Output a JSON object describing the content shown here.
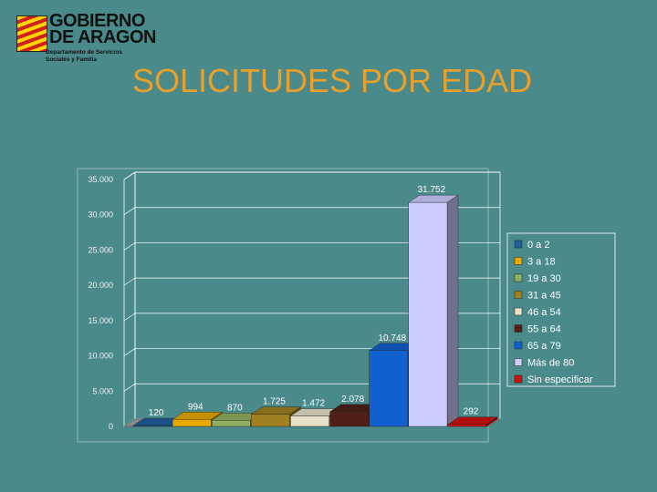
{
  "logo": {
    "name_line1": "GOBIERNO",
    "name_line2": "DE ARAGON",
    "dept_line1": "Departamento de Servicios",
    "dept_line2": "Sociales y Familia"
  },
  "title": "SOLICITUDES POR EDAD",
  "chart_data": {
    "type": "bar",
    "categories": [
      "0 a 2",
      "3 a 18",
      "19 a 30",
      "31 a 45",
      "46 a 54",
      "55 a 64",
      "65 a 79",
      "Más de 80",
      "Sin especificar"
    ],
    "values": [
      120,
      994,
      870,
      1725,
      1472,
      2078,
      10748,
      31752,
      292
    ],
    "value_labels": [
      "120",
      "994",
      "870",
      "1.725",
      "1.472",
      "2.078",
      "10.748",
      "31.752",
      "292"
    ],
    "colors": [
      "#1f5fa0",
      "#e8a800",
      "#8fb060",
      "#a08020",
      "#e8e0c8",
      "#502018",
      "#1060d0",
      "#ccccff",
      "#d01010"
    ],
    "ylim": [
      0,
      35000
    ],
    "yticks": [
      "0",
      "5.000",
      "10.000",
      "15.000",
      "20.000",
      "25.000",
      "30.000",
      "35.000"
    ],
    "grid": true,
    "legend": "right",
    "title": "",
    "xlabel": "",
    "ylabel": ""
  }
}
